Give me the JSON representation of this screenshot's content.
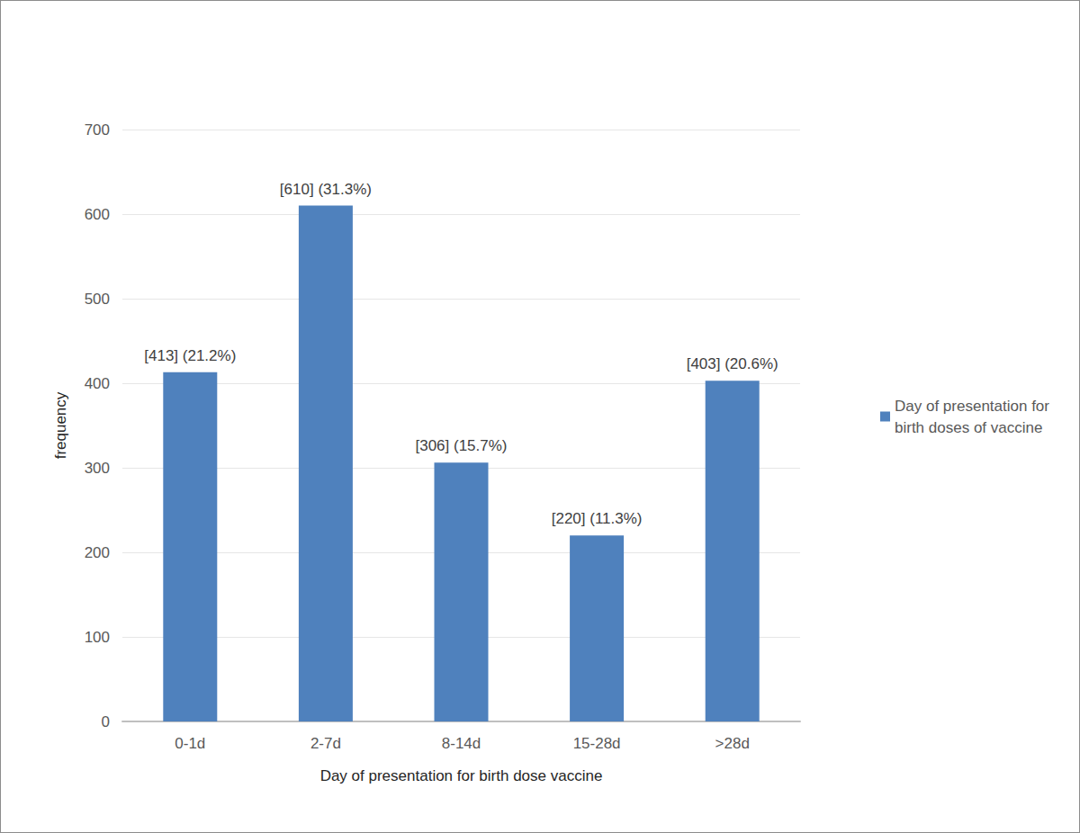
{
  "chart_data": {
    "type": "bar",
    "categories": [
      "0-1d",
      "2-7d",
      "8-14d",
      "15-28d",
      ">28d"
    ],
    "series": [
      {
        "name": "Day of presentation for birth doses of vaccine",
        "color": "#4f81bd",
        "values": [
          413,
          610,
          306,
          220,
          403
        ],
        "value_labels": [
          "[413] (21.2%)",
          "[610] (31.3%)",
          "[306] (15.7%)",
          "[220] (11.3%)",
          "[403] (20.6%)"
        ]
      }
    ],
    "x_label": "Day of presentation for birth dose vaccine",
    "y_label": "frequency",
    "ylim": [
      0,
      700
    ],
    "yticks": [
      0,
      100,
      200,
      300,
      400,
      500,
      600,
      700
    ],
    "grid": true,
    "legend": "right",
    "data_labels": true
  }
}
